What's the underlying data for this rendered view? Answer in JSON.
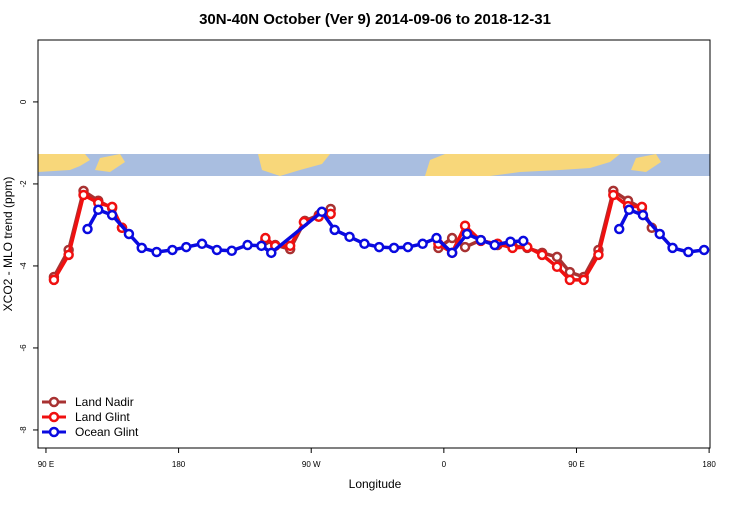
{
  "chart_data": {
    "type": "line",
    "title": "30N-40N October (Ver 9)   2014-09-06 to 2018-12-31",
    "xlabel": "Longitude",
    "ylabel": "XCO2 - MLO trend (ppm)",
    "xlim": [
      84.6,
      540.6
    ],
    "ylim": [
      -8.44,
      1.51
    ],
    "xticks": [
      {
        "value": 90,
        "label": "90 E"
      },
      {
        "value": 180,
        "label": "180"
      },
      {
        "value": 270,
        "label": "90 W"
      },
      {
        "value": 360,
        "label": "0"
      },
      {
        "value": 450,
        "label": "90 E"
      },
      {
        "value": 540,
        "label": "180"
      }
    ],
    "yticks": [
      0,
      -2,
      -4,
      -6,
      -8
    ],
    "legend": "bottom-left",
    "series": [
      {
        "name": "Land Nadir",
        "color": "#a83232",
        "x": [
          95.4,
          105.4,
          115.5,
          125.5,
          134.9,
          141.6,
          null,
          238.9,
          245.6,
          255.7,
          265.7,
          275.1,
          283.2,
          null,
          356.3,
          365.6,
          374.4,
          385.1,
          396.5,
          406.6,
          416.6,
          426.7,
          436.8,
          445.5,
          454.9,
          464.9,
          475,
          485,
          494.4,
          501.1
        ],
        "values": [
          -4.27,
          -3.61,
          -2.17,
          -2.41,
          -2.59,
          -3.07,
          null,
          -3.37,
          -3.49,
          -3.59,
          -2.9,
          -2.76,
          -2.61,
          null,
          -3.56,
          -3.32,
          -3.54,
          -3.37,
          -3.49,
          -3.51,
          -3.56,
          -3.68,
          -3.78,
          -4.15,
          -4.27,
          -3.61,
          -2.17,
          -2.41,
          -2.59,
          -3.07
        ]
      },
      {
        "name": "Land Glint",
        "color": "#f01010",
        "x": [
          95.4,
          105.4,
          115.5,
          125.5,
          134.9,
          141.6,
          null,
          238.9,
          245.6,
          255.7,
          265,
          275.1,
          283.2,
          null,
          356.3,
          365.6,
          374.4,
          385.1,
          396.5,
          406.6,
          416.6,
          426.7,
          436.8,
          445.5,
          454.9,
          464.9,
          475,
          485,
          494.4
        ],
        "values": [
          -4.34,
          -3.73,
          -2.27,
          -2.46,
          -2.56,
          -3.07,
          null,
          -3.32,
          -3.51,
          -3.51,
          -2.93,
          -2.8,
          -2.73,
          null,
          -3.46,
          -3.68,
          -3.02,
          -3.39,
          -3.46,
          -3.56,
          -3.54,
          -3.73,
          -4.02,
          -4.34,
          -4.34,
          -3.73,
          -2.27,
          -2.54,
          -2.56
        ]
      },
      {
        "name": "Ocean Glint",
        "color": "#0a0ae0",
        "x": [
          118.2,
          125.5,
          134.9,
          146.3,
          155,
          165.1,
          175.8,
          185.2,
          195.9,
          206,
          216.1,
          226.8,
          236.2,
          242.9,
          277.2,
          285.9,
          296,
          306.1,
          316.1,
          326.2,
          335.6,
          345.6,
          355,
          365.6,
          375.7,
          385.1,
          394.5,
          405.2,
          413.9,
          null,
          479,
          485.7,
          495.1,
          506.5,
          515.2,
          525.9,
          536.6
        ],
        "values": [
          -3.1,
          -2.63,
          -2.76,
          -3.22,
          -3.56,
          -3.66,
          -3.61,
          -3.54,
          -3.46,
          -3.61,
          -3.63,
          -3.49,
          -3.51,
          -3.68,
          -2.68,
          -3.12,
          -3.29,
          -3.46,
          -3.54,
          -3.56,
          -3.54,
          -3.46,
          -3.32,
          -3.68,
          -3.22,
          -3.37,
          -3.49,
          -3.41,
          -3.39,
          null,
          -3.1,
          -2.63,
          -2.76,
          -3.22,
          -3.56,
          -3.66,
          -3.61
        ]
      }
    ]
  }
}
